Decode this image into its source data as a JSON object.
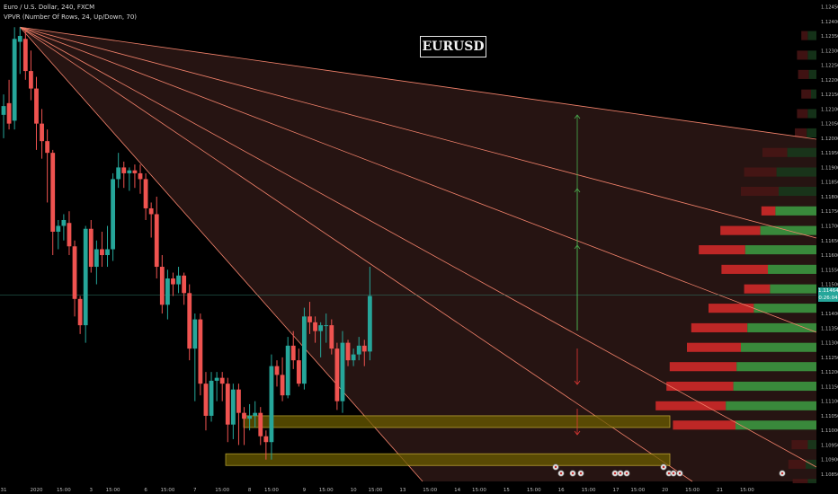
{
  "header": {
    "symbol_line": "Euro / U.S. Dollar, 240, FXCM",
    "indicator_line": "VPVR (Number Of Rows, 24, Up/Down, 70)"
  },
  "watermark": "EURUSD",
  "price_tags": {
    "last": "1.11464",
    "countdown": "0:26:04"
  },
  "colors": {
    "background": "#000000",
    "up": "#26a69a",
    "down": "#ef5350",
    "trendline": "#f4836c",
    "zone": "#c8b400",
    "up_arrow": "#4caf50",
    "down_arrow": "#e53935"
  },
  "chart_data": {
    "type": "candlestick",
    "symbol": "Euro / U.S. Dollar",
    "timeframe": "240",
    "ylim": [
      1.1085,
      1.1245
    ],
    "y_ticks": [
      "1.12450",
      "1.12400",
      "1.12350",
      "1.12300",
      "1.12250",
      "1.12200",
      "1.12150",
      "1.12100",
      "1.12050",
      "1.12000",
      "1.11950",
      "1.11900",
      "1.11850",
      "1.11800",
      "1.11750",
      "1.11700",
      "1.11650",
      "1.11600",
      "1.11550",
      "1.11500",
      "1.11450",
      "1.11400",
      "1.11350",
      "1.11300",
      "1.11250",
      "1.11200",
      "1.11150",
      "1.11100",
      "1.11050",
      "1.11000",
      "1.10950",
      "1.10900",
      "1.10850"
    ],
    "x_ticks": [
      {
        "label": "31",
        "bar": 0
      },
      {
        "label": "2020",
        "bar": 6
      },
      {
        "label": "15:00",
        "bar": 11
      },
      {
        "label": "3",
        "bar": 16
      },
      {
        "label": "15:00",
        "bar": 20
      },
      {
        "label": "6",
        "bar": 26
      },
      {
        "label": "15:00",
        "bar": 30
      },
      {
        "label": "7",
        "bar": 35
      },
      {
        "label": "15:00",
        "bar": 40
      },
      {
        "label": "8",
        "bar": 45
      },
      {
        "label": "15:00",
        "bar": 49
      },
      {
        "label": "9",
        "bar": 55
      },
      {
        "label": "15:00",
        "bar": 59
      },
      {
        "label": "10",
        "bar": 64
      },
      {
        "label": "15:00",
        "bar": 68
      },
      {
        "label": "13",
        "bar": 73
      },
      {
        "label": "15:00",
        "bar": 78
      },
      {
        "label": "14",
        "bar": 83
      },
      {
        "label": "15:00",
        "bar": 87
      },
      {
        "label": "15",
        "bar": 92
      },
      {
        "label": "15:00",
        "bar": 97
      },
      {
        "label": "16",
        "bar": 102
      },
      {
        "label": "15:00",
        "bar": 107
      },
      {
        "label": "17",
        "bar": 112
      },
      {
        "label": "15:00",
        "bar": 116
      },
      {
        "label": "20",
        "bar": 121
      },
      {
        "label": "15:00",
        "bar": 126
      },
      {
        "label": "21",
        "bar": 131
      },
      {
        "label": "15:00",
        "bar": 136
      }
    ],
    "ohlc": [
      [
        1.1208,
        1.1215,
        1.12,
        1.1211
      ],
      [
        1.1212,
        1.122,
        1.1203,
        1.1205
      ],
      [
        1.1206,
        1.1238,
        1.1203,
        1.1234
      ],
      [
        1.1233,
        1.1238,
        1.1222,
        1.1235
      ],
      [
        1.1234,
        1.1237,
        1.122,
        1.1223
      ],
      [
        1.1223,
        1.123,
        1.1213,
        1.1217
      ],
      [
        1.1217,
        1.1221,
        1.1196,
        1.1205
      ],
      [
        1.1205,
        1.121,
        1.1193,
        1.1199
      ],
      [
        1.1199,
        1.1203,
        1.1178,
        1.1195
      ],
      [
        1.1195,
        1.1196,
        1.116,
        1.1168
      ],
      [
        1.1168,
        1.1172,
        1.1162,
        1.117
      ],
      [
        1.117,
        1.1174,
        1.1165,
        1.1172
      ],
      [
        1.1171,
        1.1175,
        1.116,
        1.1163
      ],
      [
        1.1163,
        1.1165,
        1.1139,
        1.1145
      ],
      [
        1.1145,
        1.1146,
        1.1133,
        1.1136
      ],
      [
        1.1136,
        1.117,
        1.113,
        1.1169
      ],
      [
        1.1169,
        1.1172,
        1.1154,
        1.1156
      ],
      [
        1.1156,
        1.1165,
        1.115,
        1.1162
      ],
      [
        1.1162,
        1.1168,
        1.1156,
        1.116
      ],
      [
        1.116,
        1.117,
        1.1156,
        1.1162
      ],
      [
        1.1162,
        1.1188,
        1.1158,
        1.1186
      ],
      [
        1.1186,
        1.1195,
        1.1183,
        1.119
      ],
      [
        1.119,
        1.1192,
        1.1183,
        1.1188
      ],
      [
        1.1188,
        1.119,
        1.1182,
        1.1189
      ],
      [
        1.1189,
        1.1191,
        1.1183,
        1.1188
      ],
      [
        1.1188,
        1.1191,
        1.1181,
        1.1186
      ],
      [
        1.1186,
        1.1188,
        1.1172,
        1.1176
      ],
      [
        1.1176,
        1.1178,
        1.1166,
        1.1174
      ],
      [
        1.1174,
        1.118,
        1.1152,
        1.1156
      ],
      [
        1.1156,
        1.116,
        1.114,
        1.1143
      ],
      [
        1.1143,
        1.1155,
        1.1138,
        1.1152
      ],
      [
        1.1152,
        1.1154,
        1.1146,
        1.115
      ],
      [
        1.115,
        1.1156,
        1.1147,
        1.1153
      ],
      [
        1.1153,
        1.1154,
        1.1143,
        1.1147
      ],
      [
        1.1147,
        1.115,
        1.1124,
        1.1128
      ],
      [
        1.1128,
        1.114,
        1.111,
        1.1138
      ],
      [
        1.1138,
        1.114,
        1.1112,
        1.1116
      ],
      [
        1.1116,
        1.112,
        1.11,
        1.1105
      ],
      [
        1.1105,
        1.112,
        1.1103,
        1.1117
      ],
      [
        1.1117,
        1.112,
        1.111,
        1.1118
      ],
      [
        1.1118,
        1.112,
        1.111,
        1.1116
      ],
      [
        1.1116,
        1.1118,
        1.1096,
        1.1102
      ],
      [
        1.1102,
        1.1116,
        1.1097,
        1.1114
      ],
      [
        1.1114,
        1.1116,
        1.1095,
        1.1106
      ],
      [
        1.1106,
        1.1108,
        1.1095,
        1.1104
      ],
      [
        1.1104,
        1.1109,
        1.11,
        1.1105
      ],
      [
        1.1105,
        1.111,
        1.1101,
        1.1106
      ],
      [
        1.1106,
        1.1108,
        1.1095,
        1.1098
      ],
      [
        1.1098,
        1.11,
        1.109,
        1.1096
      ],
      [
        1.1096,
        1.1126,
        1.109,
        1.1122
      ],
      [
        1.1122,
        1.1124,
        1.1115,
        1.1119
      ],
      [
        1.1119,
        1.1125,
        1.111,
        1.1112
      ],
      [
        1.1112,
        1.1132,
        1.1111,
        1.1129
      ],
      [
        1.1129,
        1.1134,
        1.1121,
        1.1124
      ],
      [
        1.1124,
        1.1128,
        1.1115,
        1.1116
      ],
      [
        1.1116,
        1.1142,
        1.1114,
        1.1139
      ],
      [
        1.1139,
        1.1144,
        1.1133,
        1.1137
      ],
      [
        1.1137,
        1.1139,
        1.113,
        1.1134
      ],
      [
        1.1134,
        1.1137,
        1.1125,
        1.1136
      ],
      [
        1.1136,
        1.114,
        1.113,
        1.1136
      ],
      [
        1.1136,
        1.1138,
        1.1126,
        1.1128
      ],
      [
        1.1128,
        1.113,
        1.1107,
        1.111
      ],
      [
        1.111,
        1.1134,
        1.1106,
        1.113
      ],
      [
        1.113,
        1.1131,
        1.1122,
        1.1124
      ],
      [
        1.1124,
        1.1128,
        1.1122,
        1.1126
      ],
      [
        1.1126,
        1.1132,
        1.1124,
        1.1129
      ],
      [
        1.1129,
        1.1131,
        1.1122,
        1.1127
      ],
      [
        1.1127,
        1.1156,
        1.1124,
        1.1146
      ]
    ],
    "volume_profile": {
      "rows": [
        {
          "price": 1.1235,
          "up": 8,
          "down": 6
        },
        {
          "price": 1.12283,
          "up": 8,
          "down": 10
        },
        {
          "price": 1.12217,
          "up": 7,
          "down": 10
        },
        {
          "price": 1.1215,
          "up": 5,
          "down": 9
        },
        {
          "price": 1.12083,
          "up": 8,
          "down": 10
        },
        {
          "price": 1.12017,
          "up": 9,
          "down": 11
        },
        {
          "price": 1.1195,
          "up": 27,
          "down": 23
        },
        {
          "price": 1.11883,
          "up": 37,
          "down": 30
        },
        {
          "price": 1.11817,
          "up": 35,
          "down": 35
        },
        {
          "price": 1.1175,
          "up": 38,
          "down": 13
        },
        {
          "price": 1.11683,
          "up": 52,
          "down": 37
        },
        {
          "price": 1.11617,
          "up": 66,
          "down": 43
        },
        {
          "price": 1.1155,
          "up": 45,
          "down": 43
        },
        {
          "price": 1.11483,
          "up": 43,
          "down": 24
        },
        {
          "price": 1.11417,
          "up": 58,
          "down": 42
        },
        {
          "price": 1.1135,
          "up": 64,
          "down": 52
        },
        {
          "price": 1.11283,
          "up": 70,
          "down": 50
        },
        {
          "price": 1.11217,
          "up": 74,
          "down": 62
        },
        {
          "price": 1.1115,
          "up": 77,
          "down": 62
        },
        {
          "price": 1.11083,
          "up": 84,
          "down": 65
        },
        {
          "price": 1.11017,
          "up": 75,
          "down": 58
        },
        {
          "price": 1.1095,
          "up": 8,
          "down": 15
        },
        {
          "price": 1.10883,
          "up": 10,
          "down": 16
        },
        {
          "price": 1.10817,
          "up": 8,
          "down": 14
        }
      ]
    },
    "support_zones": [
      [
        1.1101,
        1.1105
      ],
      [
        1.1088,
        1.1092
      ]
    ],
    "current_price": 1.11464
  }
}
